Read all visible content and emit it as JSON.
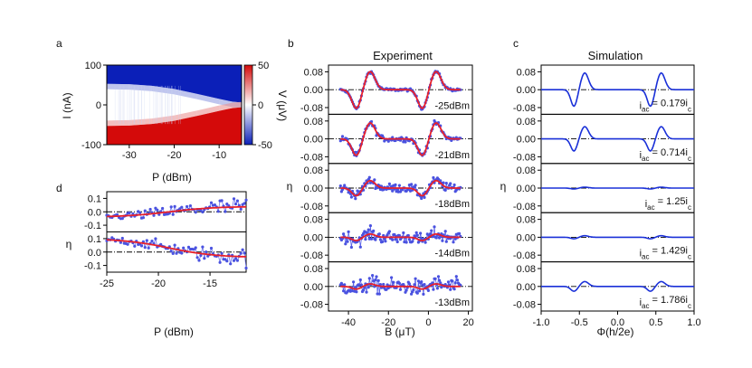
{
  "panel_letters": [
    "a",
    "b",
    "c",
    "d"
  ],
  "chart_data": [
    {
      "panel": "a",
      "type": "heatmap",
      "xlabel": "P (dBm)",
      "ylabel": "I (nA)",
      "xlim": [
        -35,
        -5
      ],
      "ylim": [
        -100,
        100
      ],
      "x_ticks": [
        "-30",
        "-20",
        "-10"
      ],
      "y_ticks": [
        "100",
        "0",
        "-100"
      ],
      "colorbar": {
        "label": "V (μV)",
        "range": [
          -50,
          50
        ],
        "ticks": [
          "50",
          "0",
          "-50"
        ],
        "colors": [
          "#0b1fb8",
          "#ffffff",
          "#d40a0a"
        ]
      },
      "boundary": {
        "p": [
          -35,
          -30,
          -25,
          -20,
          -15,
          -10,
          -7,
          -5
        ],
        "upper_nA": [
          53,
          52,
          48,
          40,
          28,
          15,
          8,
          6
        ],
        "lower_nA": [
          -53,
          -52,
          -48,
          -40,
          -28,
          -15,
          -8,
          -6
        ]
      }
    },
    {
      "panel": "b",
      "type": "line",
      "title": "Experiment",
      "xlabel": "B (μT)",
      "ylabel": "η",
      "xlim": [
        -50,
        22
      ],
      "ylim": [
        -0.11,
        0.11
      ],
      "x_ticks": [
        "-40",
        "-20",
        "0",
        "20"
      ],
      "y_ticks": [
        "0.08",
        "0.00",
        "-0.08"
      ],
      "series": [
        {
          "name": "-25dBm",
          "amp": 0.085,
          "noise": 0.006
        },
        {
          "name": "-21dBm",
          "amp": 0.075,
          "noise": 0.012
        },
        {
          "name": "-18dBm",
          "amp": 0.035,
          "noise": 0.018
        },
        {
          "name": "-14dBm",
          "amp": 0.015,
          "noise": 0.028
        },
        {
          "name": "-13dBm",
          "amp": 0.012,
          "noise": 0.035
        }
      ]
    },
    {
      "panel": "c",
      "type": "line",
      "title": "Simulation",
      "xlabel": "Φ(h/2e)",
      "ylabel": "η",
      "xlim": [
        -1.0,
        1.0
      ],
      "ylim": [
        -0.11,
        0.11
      ],
      "x_ticks": [
        "-1.0",
        "-0.5",
        "0.0",
        "0.5",
        "1.0"
      ],
      "y_ticks": [
        "0.08",
        "0.00",
        "-0.08"
      ],
      "series": [
        {
          "label_pre": "i",
          "label_sub": "ac",
          "label_mid": " = 0.179i",
          "label_sub2": "c",
          "amp": 0.075
        },
        {
          "label_pre": "i",
          "label_sub": "ac",
          "label_mid": " = 0.714i",
          "label_sub2": "c",
          "amp": 0.055
        },
        {
          "label_pre": "i",
          "label_sub": "ac",
          "label_mid": " = 1.25i",
          "label_sub2": "c",
          "amp": 0.004
        },
        {
          "label_pre": "i",
          "label_sub": "ac",
          "label_mid": " = 1.429i",
          "label_sub2": "c",
          "amp": 0.007
        },
        {
          "label_pre": "i",
          "label_sub": "ac",
          "label_mid": " = 1.786i",
          "label_sub2": "c",
          "amp": 0.022
        }
      ]
    },
    {
      "panel": "d",
      "type": "line",
      "xlabel": "P (dBm)",
      "ylabel": "η",
      "xlim": [
        -25,
        -11.5
      ],
      "ylim": [
        -0.15,
        0.15
      ],
      "x_ticks": [
        "-25",
        "-20",
        "-15"
      ],
      "y_ticks": [
        "0.1",
        "0.0",
        "-0.1"
      ],
      "series": [
        {
          "start": -0.04,
          "end": 0.04
        },
        {
          "start": 0.1,
          "end": -0.04
        }
      ]
    }
  ]
}
